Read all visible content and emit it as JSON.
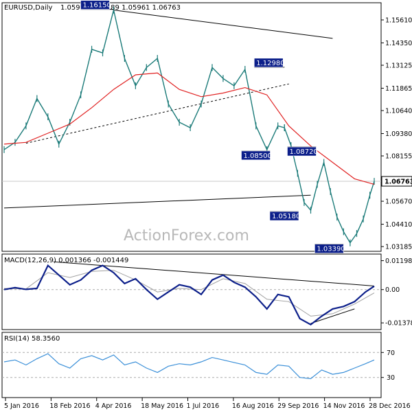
{
  "header": {
    "symbol": "EURUSD,Daily",
    "ohlc": "1.05998 1.07189 1.05961 1.06763"
  },
  "watermark": "ActionForex.com",
  "macd_panel": {
    "label": "MACD(12,26,9) 0.001366 -0.001449"
  },
  "rsi_panel": {
    "label": "RSI(14) 58.3560"
  },
  "colors": {
    "price_bars": "#1a7a78",
    "moving_average": "#e02020",
    "trendline": "#000000",
    "callout_bg": "#0c1f8a",
    "macd_line": "#0c1f8a",
    "signal_line": "#a0a0a0",
    "rsi_line": "#3a8fd8"
  },
  "chart_data": [
    {
      "type": "ohlc",
      "title": "EURUSD,Daily",
      "x_ticks": [
        "5 Jan 2016",
        "18 Feb 2016",
        "4 Apr 2016",
        "18 May 2016",
        "1 Jul 2016",
        "16 Aug 2016",
        "29 Sep 2016",
        "14 Nov 2016",
        "28 Dec 2016"
      ],
      "y_ticks": [
        "1.15610",
        "1.14350",
        "1.13125",
        "1.11865",
        "1.10640",
        "1.09380",
        "1.08155",
        "1.06763",
        "1.05670",
        "1.04410",
        "1.03185"
      ],
      "ylim": [
        1.03,
        1.164
      ],
      "current_price": "1.06763",
      "levels": [
        "1.16150",
        "1.12980",
        "1.08500",
        "1.08720",
        "1.05180",
        "1.03390"
      ],
      "series": [
        {
          "name": "",
          "x": [
            0,
            10,
            20,
            30,
            40,
            50,
            60,
            70,
            80,
            90,
            100,
            110,
            120,
            130,
            140,
            150,
            160,
            170,
            180,
            190,
            200,
            210,
            220,
            230,
            240,
            250,
            256
          ],
          "values": [
            1.085,
            1.089,
            1.098,
            1.113,
            1.103,
            1.088,
            1.1,
            1.115,
            1.14,
            1.138,
            1.1615,
            1.135,
            1.12,
            1.13,
            1.135,
            1.11,
            1.1,
            1.097,
            1.11,
            1.13,
            1.124,
            1.12,
            1.129,
            1.098,
            1.085,
            1.098,
            1.097
          ]
        },
        {
          "name": "",
          "x": [
            256,
            262,
            268,
            274,
            280,
            286,
            292,
            298,
            304,
            310,
            316,
            322,
            328,
            334,
            338
          ],
          "values": [
            1.097,
            1.0872,
            1.072,
            1.056,
            1.0518,
            1.066,
            1.078,
            1.062,
            1.048,
            1.04,
            1.0339,
            1.039,
            1.047,
            1.06,
            1.0676
          ]
        }
      ],
      "moving_average": {
        "x": [
          0,
          20,
          40,
          60,
          80,
          100,
          120,
          140,
          160,
          180,
          200,
          220,
          240,
          260,
          280,
          300,
          320,
          338
        ],
        "values": [
          1.088,
          1.089,
          1.094,
          1.099,
          1.108,
          1.118,
          1.126,
          1.127,
          1.118,
          1.114,
          1.116,
          1.119,
          1.115,
          1.098,
          1.087,
          1.078,
          1.069,
          1.066
        ]
      },
      "trendlines": [
        {
          "x": [
            100,
            300
          ],
          "values": [
            1.1615,
            1.146
          ]
        },
        {
          "x": [
            20,
            260
          ],
          "values": [
            1.0885,
            1.121
          ]
        },
        {
          "x": [
            0,
            280
          ],
          "values": [
            1.053,
            1.06
          ]
        }
      ],
      "callouts": [
        {
          "x": 100,
          "label": "1.16150",
          "anchor": 1.1615
        },
        {
          "x": 256,
          "label": "1.12980",
          "anchor": 1.1298
        },
        {
          "x": 243,
          "label": "1.08500",
          "anchor": 1.085
        },
        {
          "x": 285,
          "label": "1.08720",
          "anchor": 1.0872
        },
        {
          "x": 269,
          "label": "1.05180",
          "anchor": 1.0518
        },
        {
          "x": 310,
          "label": "1.03390",
          "anchor": 1.0339
        }
      ]
    },
    {
      "type": "line",
      "title": "MACD(12,26,9) 0.001366 -0.001449",
      "y_ticks": [
        "0.011982",
        "0.00",
        "-0.013788"
      ],
      "ylim": [
        -0.016,
        0.013
      ],
      "series": [
        {
          "name": "",
          "x": [
            0,
            10,
            20,
            30,
            40,
            50,
            60,
            70,
            80,
            90,
            100,
            110,
            120,
            130,
            140,
            150,
            160,
            170,
            180,
            190,
            200,
            210,
            220,
            230,
            240,
            250,
            260,
            270,
            280,
            290,
            300,
            310,
            320,
            330,
            338
          ],
          "values": [
            0.0,
            0.0008,
            0.0001,
            0.0005,
            0.01,
            0.006,
            0.002,
            0.004,
            0.008,
            0.01,
            0.007,
            0.0025,
            0.0045,
            0.0,
            -0.004,
            -0.001,
            0.002,
            0.001,
            -0.002,
            0.004,
            0.006,
            0.003,
            0.001,
            -0.003,
            -0.008,
            -0.002,
            -0.003,
            -0.012,
            -0.0145,
            -0.011,
            -0.008,
            -0.007,
            -0.005,
            -0.001,
            0.0014
          ]
        },
        {
          "name": "",
          "x": [
            0,
            20,
            40,
            60,
            80,
            100,
            120,
            140,
            160,
            180,
            200,
            220,
            240,
            260,
            280,
            300,
            320,
            338
          ],
          "values": [
            0.0005,
            0.0003,
            0.007,
            0.005,
            0.0075,
            0.008,
            0.004,
            -0.001,
            0.0005,
            0.0,
            0.0045,
            0.0025,
            -0.004,
            -0.005,
            -0.011,
            -0.01,
            -0.006,
            -0.0014
          ]
        }
      ],
      "trendlines": [
        {
          "x": [
            45,
            338
          ],
          "values": [
            0.0115,
            0.0015
          ]
        },
        {
          "x": [
            280,
            320
          ],
          "values": [
            -0.014,
            -0.008
          ]
        }
      ]
    },
    {
      "type": "line",
      "title": "RSI(14) 58.3560",
      "y_ticks": [
        "70",
        "30"
      ],
      "ylim": [
        0,
        100
      ],
      "reference_lines": [
        70,
        30
      ],
      "series": [
        {
          "name": "",
          "x": [
            0,
            10,
            20,
            30,
            40,
            50,
            60,
            70,
            80,
            90,
            100,
            110,
            120,
            130,
            140,
            150,
            160,
            170,
            180,
            190,
            200,
            210,
            220,
            230,
            240,
            250,
            260,
            270,
            280,
            290,
            300,
            310,
            320,
            330,
            338
          ],
          "values": [
            55,
            58,
            50,
            60,
            68,
            52,
            45,
            60,
            65,
            58,
            66,
            50,
            55,
            45,
            38,
            48,
            52,
            50,
            55,
            62,
            58,
            54,
            50,
            38,
            35,
            50,
            48,
            30,
            28,
            42,
            35,
            38,
            45,
            52,
            58
          ]
        }
      ]
    }
  ]
}
